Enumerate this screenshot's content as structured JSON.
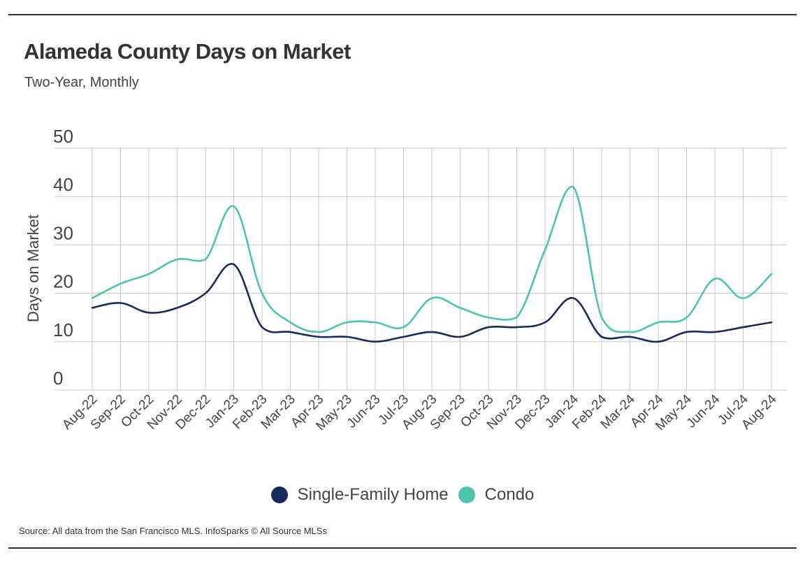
{
  "header": {
    "title": "Alameda County Days on Market",
    "subtitle": "Two-Year, Monthly"
  },
  "source": "Source:  All data from the San Francisco MLS. InfoSparks © All Source MLSs",
  "colors": {
    "single_family": "#1b2a5a",
    "condo": "#4fc4ad",
    "grid": "#c8c8c8"
  },
  "chart_data": {
    "type": "line",
    "title": "Alameda County Days on Market",
    "subtitle": "Two-Year, Monthly",
    "xlabel": "",
    "ylabel": "Days on Market",
    "ylim": [
      0,
      50
    ],
    "yticks": [
      0,
      10,
      20,
      30,
      40,
      50
    ],
    "grid": true,
    "legend": "bottom-center",
    "categories": [
      "Aug-22",
      "Sep-22",
      "Oct-22",
      "Nov-22",
      "Dec-22",
      "Jan-23",
      "Feb-23",
      "Mar-23",
      "Apr-23",
      "May-23",
      "Jun-23",
      "Jul-23",
      "Aug-23",
      "Sep-23",
      "Oct-23",
      "Nov-23",
      "Dec-23",
      "Jan-24",
      "Feb-24",
      "Mar-24",
      "Apr-24",
      "May-24",
      "Jun-24",
      "Jul-24",
      "Aug-24"
    ],
    "series": [
      {
        "name": "Single-Family Home",
        "color": "#1b2a5a",
        "values": [
          17,
          18,
          16,
          17,
          20,
          26,
          13,
          12,
          11,
          11,
          10,
          11,
          12,
          11,
          13,
          13,
          14,
          19,
          11,
          11,
          10,
          12,
          12,
          13,
          14
        ]
      },
      {
        "name": "Condo",
        "color": "#4fc4ad",
        "values": [
          19,
          22,
          24,
          27,
          27,
          38,
          20,
          14,
          12,
          14,
          14,
          13,
          19,
          17,
          15,
          15,
          29,
          42,
          15,
          12,
          14,
          15,
          23,
          19,
          24
        ]
      }
    ]
  }
}
